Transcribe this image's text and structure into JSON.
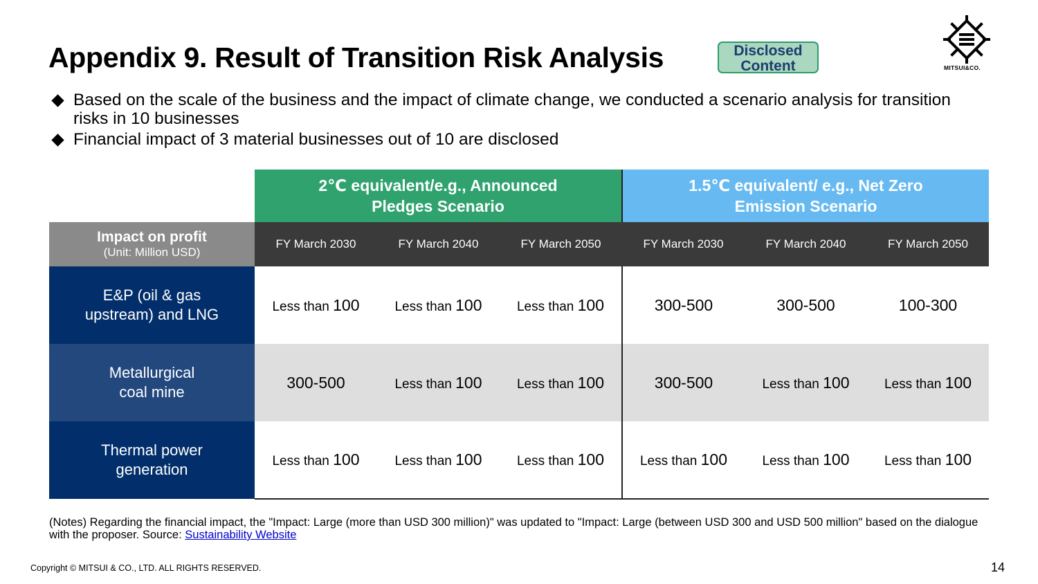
{
  "title": "Appendix 9. Result of Transition Risk Analysis",
  "badge": {
    "line1": "Disclosed",
    "line2": "Content"
  },
  "logo": {
    "text": "MITSUI&CO."
  },
  "bullets": [
    "Based on the scale of the business and the impact of climate change, we conducted a scenario analysis for transition risks in 10 businesses",
    "Financial impact of 3 material businesses out of 10 are disclosed"
  ],
  "table": {
    "scenarios": [
      {
        "line1": "2℃ equivalent/e.g., Announced",
        "line2": "Pledges Scenario"
      },
      {
        "line1": "1.5℃ equivalent/ e.g., Net Zero",
        "line2": "Emission Scenario"
      }
    ],
    "impact_header": "Impact on profit",
    "impact_unit": "(Unit: Million USD)",
    "years": [
      "FY March 2030",
      "FY March 2040",
      "FY March 2050",
      "FY March 2030",
      "FY March 2040",
      "FY March 2050"
    ],
    "rows": [
      {
        "line1": "E&P (oil & gas",
        "line2": "upstream) and LNG",
        "cells": [
          {
            "pre": "Less than ",
            "val": "100"
          },
          {
            "pre": "Less than ",
            "val": "100"
          },
          {
            "pre": "Less than ",
            "val": "100"
          },
          {
            "pre": "",
            "val": "300-500"
          },
          {
            "pre": "",
            "val": "300-500"
          },
          {
            "pre": "",
            "val": "100-300"
          }
        ]
      },
      {
        "line1": "Metallurgical",
        "line2": "coal mine",
        "cells": [
          {
            "pre": "",
            "val": "300-500"
          },
          {
            "pre": "Less than ",
            "val": "100"
          },
          {
            "pre": "Less than ",
            "val": "100"
          },
          {
            "pre": "",
            "val": "300-500"
          },
          {
            "pre": "Less than ",
            "val": "100"
          },
          {
            "pre": "Less than ",
            "val": "100"
          }
        ]
      },
      {
        "line1": "Thermal power",
        "line2": "generation",
        "cells": [
          {
            "pre": "Less than ",
            "val": "100"
          },
          {
            "pre": "Less than ",
            "val": "100"
          },
          {
            "pre": "Less than ",
            "val": "100"
          },
          {
            "pre": "Less than ",
            "val": "100"
          },
          {
            "pre": "Less than ",
            "val": "100"
          },
          {
            "pre": "Less than ",
            "val": "100"
          }
        ]
      }
    ]
  },
  "notes": {
    "text": "(Notes) Regarding the financial impact, the \"Impact: Large (more than USD 300 million)\" was updated to \"Impact: Large (between USD 300 and USD 500 million\" based on the dialogue with the proposer.  Source: ",
    "link": "Sustainability Website"
  },
  "copyright": "Copyright © MITSUI & CO., LTD. ALL RIGHTS RESERVED.",
  "page_number": "14",
  "colors": {
    "scenario_2c": "#2fa26e",
    "scenario_15c": "#66b9f1",
    "navy": "#022f6b",
    "badge_bg": "#a9d7c0",
    "badge_border": "#2e9b68"
  }
}
